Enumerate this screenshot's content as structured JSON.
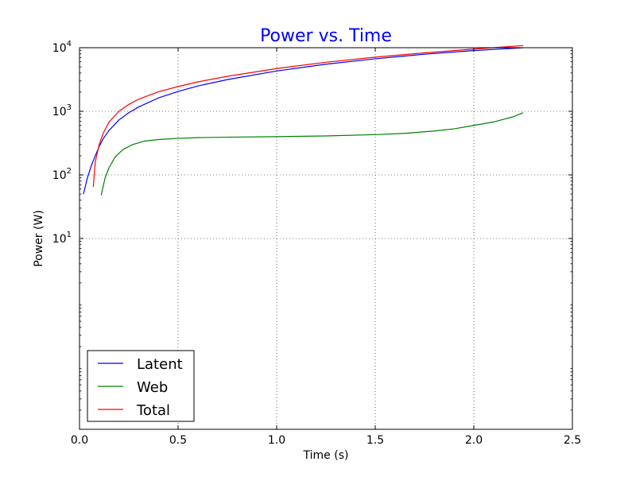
{
  "chart_data": {
    "type": "line",
    "title": "Power vs. Time",
    "title_color": "#0000ff",
    "xlabel": "Time (s)",
    "ylabel": "Power (W)",
    "xlim": [
      0.0,
      2.5
    ],
    "ylim": [
      0.01,
      10000
    ],
    "yscale": "log",
    "grid": true,
    "legend_position": "lower-left",
    "x_ticks": [
      "0.0",
      "0.5",
      "1.0",
      "1.5",
      "2.0",
      "2.5"
    ],
    "y_ticks": [
      {
        "value": 10,
        "base": "10",
        "exp": "1"
      },
      {
        "value": 100,
        "base": "10",
        "exp": "2"
      },
      {
        "value": 1000,
        "base": "10",
        "exp": "3"
      },
      {
        "value": 10000,
        "base": "10",
        "exp": "4"
      }
    ],
    "series": [
      {
        "name": "Latent",
        "color": "#0000ff",
        "points": [
          [
            0.02,
            50
          ],
          [
            0.04,
            90
          ],
          [
            0.06,
            140
          ],
          [
            0.08,
            200
          ],
          [
            0.1,
            280
          ],
          [
            0.12,
            370
          ],
          [
            0.15,
            500
          ],
          [
            0.2,
            730
          ],
          [
            0.25,
            950
          ],
          [
            0.3,
            1170
          ],
          [
            0.4,
            1620
          ],
          [
            0.5,
            2050
          ],
          [
            0.6,
            2500
          ],
          [
            0.75,
            3150
          ],
          [
            1.0,
            4300
          ],
          [
            1.25,
            5500
          ],
          [
            1.5,
            6700
          ],
          [
            1.75,
            7900
          ],
          [
            2.0,
            9000
          ],
          [
            2.25,
            10000
          ]
        ]
      },
      {
        "name": "Web",
        "color": "#008000",
        "points": [
          [
            0.11,
            48
          ],
          [
            0.13,
            90
          ],
          [
            0.15,
            130
          ],
          [
            0.18,
            190
          ],
          [
            0.22,
            250
          ],
          [
            0.27,
            300
          ],
          [
            0.33,
            340
          ],
          [
            0.4,
            360
          ],
          [
            0.5,
            375
          ],
          [
            0.6,
            385
          ],
          [
            0.75,
            392
          ],
          [
            1.0,
            400
          ],
          [
            1.25,
            410
          ],
          [
            1.5,
            430
          ],
          [
            1.65,
            450
          ],
          [
            1.8,
            490
          ],
          [
            1.9,
            530
          ],
          [
            2.0,
            600
          ],
          [
            2.1,
            680
          ],
          [
            2.2,
            820
          ],
          [
            2.25,
            950
          ]
        ]
      },
      {
        "name": "Total",
        "color": "#ff0000",
        "points": [
          [
            0.07,
            65
          ],
          [
            0.08,
            160
          ],
          [
            0.1,
            300
          ],
          [
            0.12,
            450
          ],
          [
            0.15,
            680
          ],
          [
            0.2,
            1000
          ],
          [
            0.25,
            1280
          ],
          [
            0.3,
            1550
          ],
          [
            0.4,
            2030
          ],
          [
            0.5,
            2450
          ],
          [
            0.6,
            2900
          ],
          [
            0.75,
            3550
          ],
          [
            1.0,
            4700
          ],
          [
            1.25,
            5900
          ],
          [
            1.5,
            7100
          ],
          [
            1.75,
            8300
          ],
          [
            2.0,
            9500
          ],
          [
            2.25,
            10800
          ]
        ]
      }
    ]
  }
}
